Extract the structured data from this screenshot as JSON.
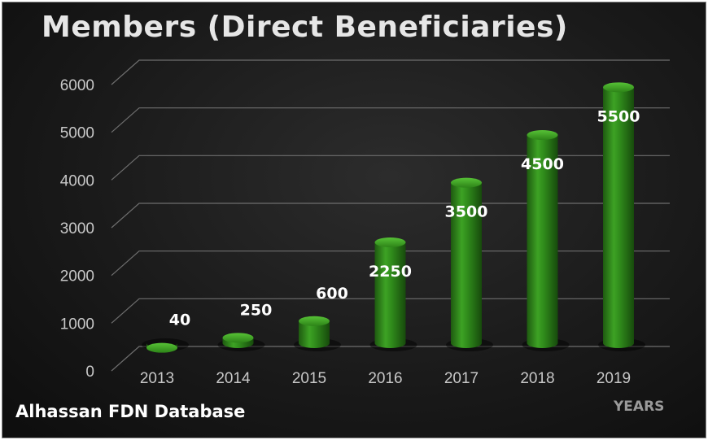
{
  "chart_data": {
    "type": "bar",
    "title": "Members (Direct Beneficiaries)",
    "xlabel": "YEARS",
    "ylabel": "",
    "categories": [
      "2013",
      "2014",
      "2015",
      "2016",
      "2017",
      "2018",
      "2019"
    ],
    "values": [
      40,
      250,
      600,
      2250,
      3500,
      4500,
      5500
    ],
    "data_labels": [
      "40",
      "250",
      "600",
      "2250",
      "3500",
      "4500",
      "5500"
    ],
    "y_ticks": [
      "0",
      "1000",
      "2000",
      "3000",
      "4000",
      "5000",
      "6000"
    ],
    "ylim": [
      0,
      6000
    ],
    "grid": true,
    "bar_style": "3d-cylinder",
    "colors": {
      "background": "#1a1a1a",
      "bar": "#2e8a1c",
      "bar_highlight": "#4fb52e",
      "text": "#ffffff",
      "axis_text": "#c8c8c8",
      "grid": "#6e6e6e"
    }
  },
  "source_label": "Alhassan FDN Database"
}
